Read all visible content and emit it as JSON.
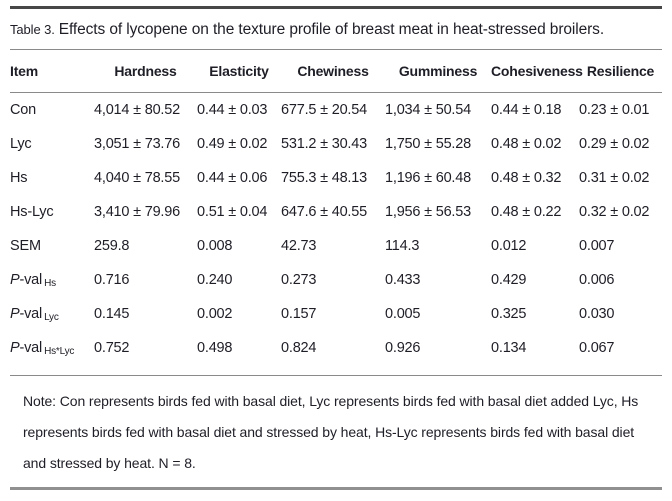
{
  "title": {
    "label": "Table 3.",
    "text": "Effects of lycopene on the texture profile of breast meat in heat-stressed broilers."
  },
  "table": {
    "columns": [
      "Item",
      "Hardness",
      "Elasticity",
      "Chewiness",
      "Gumminess",
      "Cohesiveness",
      "Resilience"
    ],
    "rows": [
      {
        "item": {
          "text": "Con"
        },
        "values": [
          "4,014 ± 80.52",
          "0.44 ± 0.03",
          "677.5 ± 20.54",
          "1,034 ± 50.54",
          "0.44 ± 0.18",
          "0.23 ± 0.01"
        ]
      },
      {
        "item": {
          "text": "Lyc"
        },
        "values": [
          "3,051 ± 73.76",
          "0.49 ± 0.02",
          "531.2 ± 30.43",
          "1,750 ± 55.28",
          "0.48 ± 0.02",
          "0.29 ± 0.02"
        ]
      },
      {
        "item": {
          "text": "Hs"
        },
        "values": [
          "4,040 ± 78.55",
          "0.44 ± 0.06",
          "755.3 ± 48.13",
          "1,196 ± 60.48",
          "0.48 ± 0.32",
          "0.31 ± 0.02"
        ]
      },
      {
        "item": {
          "text": "Hs-Lyc"
        },
        "values": [
          "3,410 ± 79.96",
          "0.51 ± 0.04",
          "647.6 ± 40.55",
          "1,956 ± 56.53",
          "0.48 ± 0.22",
          "0.32 ± 0.02"
        ]
      },
      {
        "item": {
          "text": "SEM"
        },
        "values": [
          "259.8",
          "0.008",
          "42.73",
          "114.3",
          "0.012",
          "0.007"
        ]
      },
      {
        "item": {
          "italic": "P",
          "text": "-val",
          "sub": "Hs"
        },
        "values": [
          "0.716",
          "0.240",
          "0.273",
          "0.433",
          "0.429",
          "0.006"
        ]
      },
      {
        "item": {
          "italic": "P",
          "text": "-val",
          "sub": "Lyc"
        },
        "values": [
          "0.145",
          "0.002",
          "0.157",
          "0.005",
          "0.325",
          "0.030"
        ]
      },
      {
        "item": {
          "italic": "P",
          "text": "-val",
          "sub": "Hs*Lyc"
        },
        "values": [
          "0.752",
          "0.498",
          "0.824",
          "0.926",
          "0.134",
          "0.067"
        ]
      }
    ]
  },
  "note": "Note: Con represents birds fed with basal diet, Lyc represents birds fed with basal diet added Lyc, Hs represents birds fed with basal diet and stressed by heat, Hs-Lyc represents birds fed with basal diet and stressed by heat. N = 8.",
  "colors": {
    "text": "#1e1e27",
    "rule_top": "#474747",
    "rule_inner": "#8a8a8a",
    "rule_bottom": "#909090"
  }
}
